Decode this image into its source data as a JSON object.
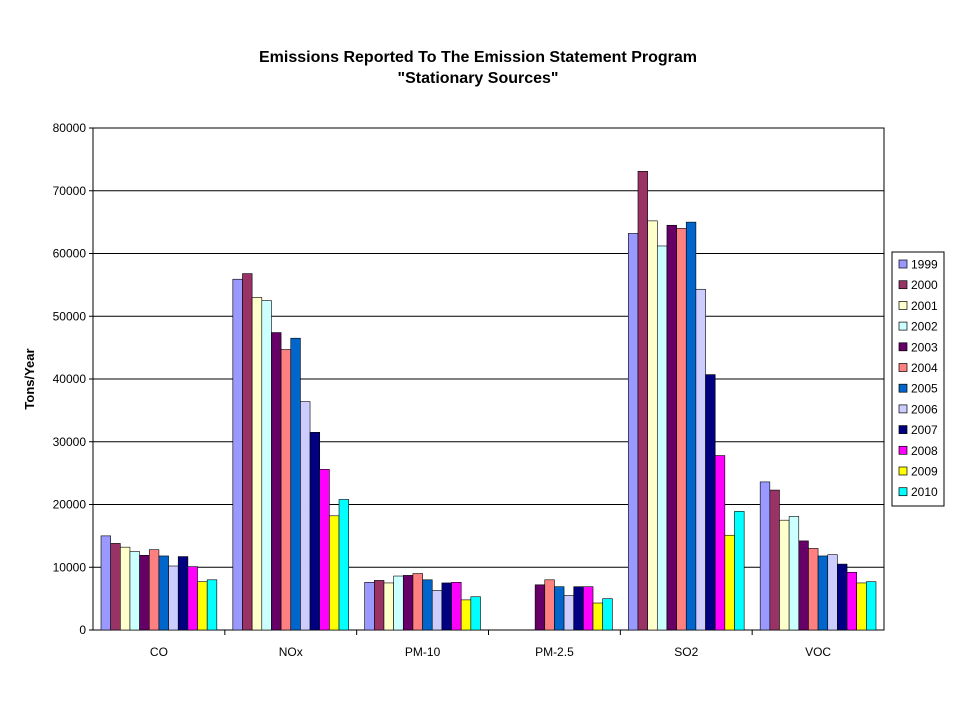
{
  "chart_data": {
    "type": "bar",
    "title": "Emissions Reported To The Emission Statement Program",
    "subtitle": "\"Stationary Sources\"",
    "xlabel": "",
    "ylabel": "Tons/Year",
    "ylim": [
      0,
      80000
    ],
    "yticks": [
      "0",
      "10000",
      "20000",
      "30000",
      "40000",
      "50000",
      "60000",
      "70000",
      "80000"
    ],
    "grid": true,
    "legend_position": "right",
    "categories": [
      "CO",
      "NOx",
      "PM-10",
      "PM-2.5",
      "SO2",
      "VOC"
    ],
    "series": [
      {
        "name": "1999",
        "color": "#9999FF",
        "values": [
          15000,
          55900,
          7600,
          null,
          63200,
          23600
        ]
      },
      {
        "name": "2000",
        "color": "#993366",
        "values": [
          13800,
          56800,
          7900,
          null,
          73100,
          22300
        ]
      },
      {
        "name": "2001",
        "color": "#FFFFCC",
        "values": [
          13200,
          53000,
          7500,
          null,
          65200,
          17500
        ]
      },
      {
        "name": "2002",
        "color": "#CCFFFF",
        "values": [
          12500,
          52500,
          8600,
          null,
          61200,
          18100
        ]
      },
      {
        "name": "2003",
        "color": "#660066",
        "values": [
          11900,
          47400,
          8700,
          7200,
          64500,
          14200
        ]
      },
      {
        "name": "2004",
        "color": "#FF8080",
        "values": [
          12800,
          44700,
          9000,
          8000,
          64000,
          13000
        ]
      },
      {
        "name": "2005",
        "color": "#0066CC",
        "values": [
          11800,
          46500,
          8000,
          6900,
          65000,
          11800
        ]
      },
      {
        "name": "2006",
        "color": "#CCCCFF",
        "values": [
          10200,
          36400,
          6300,
          5500,
          54300,
          12000
        ]
      },
      {
        "name": "2007",
        "color": "#000080",
        "values": [
          11700,
          31500,
          7500,
          6900,
          40700,
          10500
        ]
      },
      {
        "name": "2008",
        "color": "#FF00FF",
        "values": [
          10100,
          25600,
          7600,
          6900,
          27800,
          9200
        ]
      },
      {
        "name": "2009",
        "color": "#FFFF00",
        "values": [
          7700,
          18200,
          4800,
          4300,
          15100,
          7500
        ]
      },
      {
        "name": "2010",
        "color": "#00FFFF",
        "values": [
          8000,
          20800,
          5300,
          5000,
          18900,
          7700
        ]
      }
    ]
  }
}
